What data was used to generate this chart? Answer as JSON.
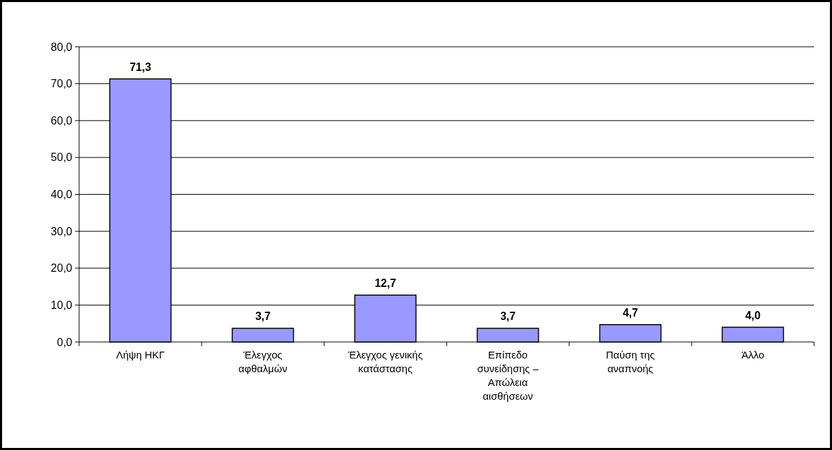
{
  "chart_data": {
    "type": "bar",
    "categories": [
      "Λήψη ΗΚΓ",
      "Έλεγχος αφθαλμών",
      "Έλεγχος γενικής κατάστασης",
      "Επίπεδο συνείδησης – Απώλεια αισθήσεων",
      "Παύση της αναπνοής",
      "Άλλο"
    ],
    "values": [
      71.3,
      3.7,
      12.7,
      3.7,
      4.7,
      4.0
    ],
    "value_labels": [
      "71,3",
      "3,7",
      "12,7",
      "3,7",
      "4,7",
      "4,0"
    ],
    "color": "#9999ff",
    "ylim": [
      0,
      80
    ],
    "yticks": [
      {
        "value": 0,
        "label": "0,0"
      },
      {
        "value": 10,
        "label": "10,0"
      },
      {
        "value": 20,
        "label": "20,0"
      },
      {
        "value": 30,
        "label": "30,0"
      },
      {
        "value": 40,
        "label": "40,0"
      },
      {
        "value": 50,
        "label": "50,0"
      },
      {
        "value": 60,
        "label": "60,0"
      },
      {
        "value": 70,
        "label": "70,0"
      },
      {
        "value": 80,
        "label": "80,0"
      }
    ],
    "grid": "y"
  }
}
